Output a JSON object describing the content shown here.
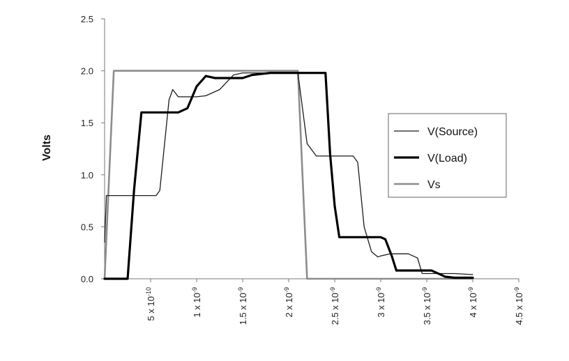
{
  "chart_data": {
    "type": "line",
    "title": "",
    "xlabel": "",
    "ylabel": "Volts",
    "xlim": [
      0,
      4.5e-09
    ],
    "ylim": [
      0,
      2.5
    ],
    "y_ticks": [
      "0.0",
      "0.5",
      "1.0",
      "1.5",
      "2.0",
      "2.5"
    ],
    "x_tick_values": [
      5e-10,
      1e-09,
      1.5e-09,
      2e-09,
      2.5e-09,
      3e-09,
      3.5e-09,
      4e-09,
      4.5e-09
    ],
    "x_ticks": [
      {
        "mantissa": "5 x 10",
        "exp": "-10"
      },
      {
        "mantissa": "1 x 10",
        "exp": "-9"
      },
      {
        "mantissa": "1.5 x 10",
        "exp": "-9"
      },
      {
        "mantissa": "2 x 10",
        "exp": "-9"
      },
      {
        "mantissa": "2.5 x 10",
        "exp": "-9"
      },
      {
        "mantissa": "3 x 10",
        "exp": "-9"
      },
      {
        "mantissa": "3.5 x 10",
        "exp": "-9"
      },
      {
        "mantissa": "4 x 10",
        "exp": "-9"
      },
      {
        "mantissa": "4.5 x 10",
        "exp": "-9"
      }
    ],
    "grid": false,
    "legend_position": "right",
    "series": [
      {
        "name": "V(Source)",
        "color": "#1a1a1a",
        "style": "thin",
        "points": [
          [
            0,
            0.35
          ],
          [
            2e-11,
            0.8
          ],
          [
            1e-10,
            0.8
          ],
          [
            3e-10,
            0.8
          ],
          [
            5.6e-10,
            0.8
          ],
          [
            6e-10,
            0.85
          ],
          [
            7e-10,
            1.72
          ],
          [
            7.4e-10,
            1.82
          ],
          [
            8e-10,
            1.75
          ],
          [
            9e-10,
            1.75
          ],
          [
            1e-09,
            1.75
          ],
          [
            1.1e-09,
            1.76
          ],
          [
            1.25e-09,
            1.82
          ],
          [
            1.4e-09,
            1.96
          ],
          [
            1.5e-09,
            1.98
          ],
          [
            1.7e-09,
            1.98
          ],
          [
            2e-09,
            1.98
          ],
          [
            2.1e-09,
            1.98
          ],
          [
            2.2e-09,
            1.3
          ],
          [
            2.3e-09,
            1.18
          ],
          [
            2.6e-09,
            1.18
          ],
          [
            2.7e-09,
            1.18
          ],
          [
            2.75e-09,
            1.12
          ],
          [
            2.82e-09,
            0.5
          ],
          [
            2.9e-09,
            0.26
          ],
          [
            2.97e-09,
            0.21
          ],
          [
            3e-09,
            0.22
          ],
          [
            3.1e-09,
            0.24
          ],
          [
            3.3e-09,
            0.24
          ],
          [
            3.4e-09,
            0.2
          ],
          [
            3.45e-09,
            0.05
          ],
          [
            3.7e-09,
            0.05
          ],
          [
            3.8e-09,
            0.05
          ],
          [
            4e-09,
            0.04
          ]
        ]
      },
      {
        "name": "V(Load)",
        "color": "#000000",
        "style": "thick",
        "points": [
          [
            0,
            0
          ],
          [
            2.5e-10,
            0
          ],
          [
            3.2e-10,
            0.85
          ],
          [
            4e-10,
            1.6
          ],
          [
            8e-10,
            1.6
          ],
          [
            9e-10,
            1.64
          ],
          [
            1e-09,
            1.85
          ],
          [
            1.1e-09,
            1.95
          ],
          [
            1.2e-09,
            1.93
          ],
          [
            1.5e-09,
            1.93
          ],
          [
            1.6e-09,
            1.96
          ],
          [
            1.8e-09,
            1.98
          ],
          [
            2e-09,
            1.98
          ],
          [
            2.4e-09,
            1.98
          ],
          [
            2.45e-09,
            1.2
          ],
          [
            2.5e-09,
            0.7
          ],
          [
            2.55e-09,
            0.4
          ],
          [
            3e-09,
            0.4
          ],
          [
            3.05e-09,
            0.38
          ],
          [
            3.12e-09,
            0.22
          ],
          [
            3.17e-09,
            0.08
          ],
          [
            3.5e-09,
            0.08
          ],
          [
            3.55e-09,
            0.08
          ],
          [
            3.7e-09,
            0.02
          ],
          [
            3.8e-09,
            0.01
          ],
          [
            4e-09,
            0.01
          ]
        ]
      },
      {
        "name": "Vs",
        "color": "#8c8c8c",
        "style": "medium",
        "points": [
          [
            0,
            0
          ],
          [
            1e-10,
            2.0
          ],
          [
            2.1e-09,
            2.0
          ],
          [
            2.2e-09,
            0
          ],
          [
            4e-09,
            0
          ]
        ]
      }
    ]
  }
}
